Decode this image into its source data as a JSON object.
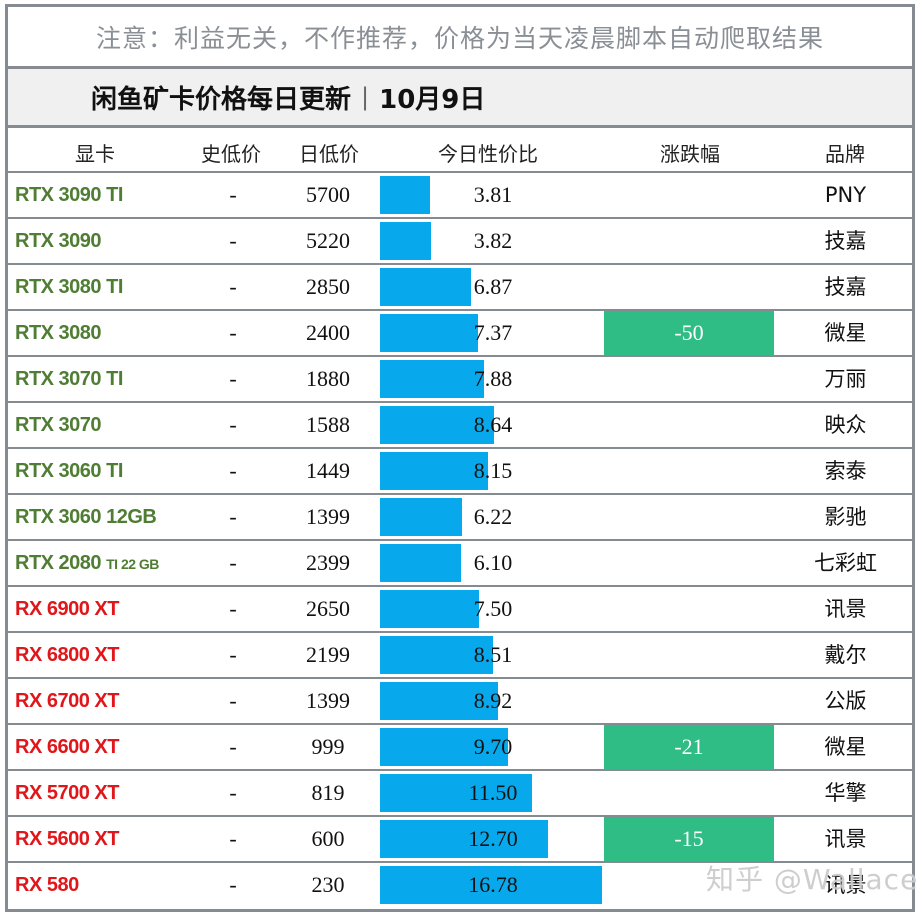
{
  "notice": "注意：利益无关，不作推荐，价格为当天凌晨脚本自动爬取结果",
  "title": {
    "main": "闲鱼矿卡价格每日更新",
    "separator": "|",
    "date": "10月9日"
  },
  "columns": {
    "gpu": "显卡",
    "hist_low": "史低价",
    "day_low": "日低价",
    "ratio": "今日性价比",
    "change": "涨跌幅",
    "brand": "品牌"
  },
  "colors": {
    "nvidia": "#4f7d34",
    "amd": "#e0161a",
    "bar": "#07a9ec",
    "change_down": "#2fbc85",
    "border": "#868b91"
  },
  "rows": [
    {
      "gpu": "RTX 3090 TI",
      "gpu_suffix": "",
      "vendor": "nv",
      "hist_low": "-",
      "day_low": "5700",
      "ratio": "3.81",
      "change": "",
      "brand": "PNY"
    },
    {
      "gpu": "RTX 3090",
      "gpu_suffix": "",
      "vendor": "nv",
      "hist_low": "-",
      "day_low": "5220",
      "ratio": "3.82",
      "change": "",
      "brand": "技嘉"
    },
    {
      "gpu": "RTX 3080 TI",
      "gpu_suffix": "",
      "vendor": "nv",
      "hist_low": "-",
      "day_low": "2850",
      "ratio": "6.87",
      "change": "",
      "brand": "技嘉"
    },
    {
      "gpu": "RTX 3080",
      "gpu_suffix": "",
      "vendor": "nv",
      "hist_low": "-",
      "day_low": "2400",
      "ratio": "7.37",
      "change": "-50",
      "brand": "微星"
    },
    {
      "gpu": "RTX 3070 TI",
      "gpu_suffix": "",
      "vendor": "nv",
      "hist_low": "-",
      "day_low": "1880",
      "ratio": "7.88",
      "change": "",
      "brand": "万丽"
    },
    {
      "gpu": "RTX 3070",
      "gpu_suffix": "",
      "vendor": "nv",
      "hist_low": "-",
      "day_low": "1588",
      "ratio": "8.64",
      "change": "",
      "brand": "映众"
    },
    {
      "gpu": "RTX 3060 TI",
      "gpu_suffix": "",
      "vendor": "nv",
      "hist_low": "-",
      "day_low": "1449",
      "ratio": "8.15",
      "change": "",
      "brand": "索泰"
    },
    {
      "gpu": "RTX 3060 12GB",
      "gpu_suffix": "",
      "vendor": "nv",
      "hist_low": "-",
      "day_low": "1399",
      "ratio": "6.22",
      "change": "",
      "brand": "影驰"
    },
    {
      "gpu": "RTX 2080 ",
      "gpu_suffix": "TI 22 GB",
      "vendor": "nv",
      "hist_low": "-",
      "day_low": "2399",
      "ratio": "6.10",
      "change": "",
      "brand": "七彩虹"
    },
    {
      "gpu": "RX 6900 XT",
      "gpu_suffix": "",
      "vendor": "amd",
      "hist_low": "-",
      "day_low": "2650",
      "ratio": "7.50",
      "change": "",
      "brand": "讯景"
    },
    {
      "gpu": "RX 6800 XT",
      "gpu_suffix": "",
      "vendor": "amd",
      "hist_low": "-",
      "day_low": "2199",
      "ratio": "8.51",
      "change": "",
      "brand": "戴尔"
    },
    {
      "gpu": "RX 6700 XT",
      "gpu_suffix": "",
      "vendor": "amd",
      "hist_low": "-",
      "day_low": "1399",
      "ratio": "8.92",
      "change": "",
      "brand": "公版"
    },
    {
      "gpu": "RX 6600 XT",
      "gpu_suffix": "",
      "vendor": "amd",
      "hist_low": "-",
      "day_low": "999",
      "ratio": "9.70",
      "change": "-21",
      "brand": "微星"
    },
    {
      "gpu": "RX 5700 XT",
      "gpu_suffix": "",
      "vendor": "amd",
      "hist_low": "-",
      "day_low": "819",
      "ratio": "11.50",
      "change": "",
      "brand": "华擎"
    },
    {
      "gpu": "RX 5600 XT",
      "gpu_suffix": "",
      "vendor": "amd",
      "hist_low": "-",
      "day_low": "600",
      "ratio": "12.70",
      "change": "-15",
      "brand": "讯景"
    },
    {
      "gpu": "RX 580",
      "gpu_suffix": "",
      "vendor": "amd",
      "hist_low": "-",
      "day_low": "230",
      "ratio": "16.78",
      "change": "",
      "brand": "讯景"
    }
  ],
  "watermark": "知乎 @Wallace",
  "chart_data": {
    "type": "table",
    "title": "闲鱼矿卡价格每日更新 | 10月9日",
    "subtitle": "注意：利益无关，不作推荐，价格为当天凌晨脚本自动爬取结果",
    "columns": [
      "显卡",
      "史低价",
      "日低价",
      "今日性价比",
      "涨跌幅",
      "品牌"
    ],
    "categories": [
      "RTX 3090 TI",
      "RTX 3090",
      "RTX 3080 TI",
      "RTX 3080",
      "RTX 3070 TI",
      "RTX 3070",
      "RTX 3060 TI",
      "RTX 3060 12GB",
      "RTX 2080 TI 22 GB",
      "RX 6900 XT",
      "RX 6800 XT",
      "RX 6700 XT",
      "RX 6600 XT",
      "RX 5700 XT",
      "RX 5600 XT",
      "RX 580"
    ],
    "series": [
      {
        "name": "日低价",
        "values": [
          5700,
          5220,
          2850,
          2400,
          1880,
          1588,
          1449,
          1399,
          2399,
          2650,
          2199,
          1399,
          999,
          819,
          600,
          230
        ]
      },
      {
        "name": "今日性价比",
        "values": [
          3.81,
          3.82,
          6.87,
          7.37,
          7.88,
          8.64,
          8.15,
          6.22,
          6.1,
          7.5,
          8.51,
          8.92,
          9.7,
          11.5,
          12.7,
          16.78
        ]
      },
      {
        "name": "涨跌幅",
        "values": [
          null,
          null,
          null,
          -50,
          null,
          null,
          null,
          null,
          null,
          null,
          null,
          null,
          -21,
          null,
          -15,
          null
        ]
      }
    ],
    "brands": [
      "PNY",
      "技嘉",
      "技嘉",
      "微星",
      "万丽",
      "映众",
      "索泰",
      "影驰",
      "七彩虹",
      "讯景",
      "戴尔",
      "公版",
      "微星",
      "华擎",
      "讯景",
      "讯景"
    ],
    "hist_low": [
      "-",
      "-",
      "-",
      "-",
      "-",
      "-",
      "-",
      "-",
      "-",
      "-",
      "-",
      "-",
      "-",
      "-",
      "-",
      "-"
    ],
    "bar_scale_max": 16.78
  }
}
